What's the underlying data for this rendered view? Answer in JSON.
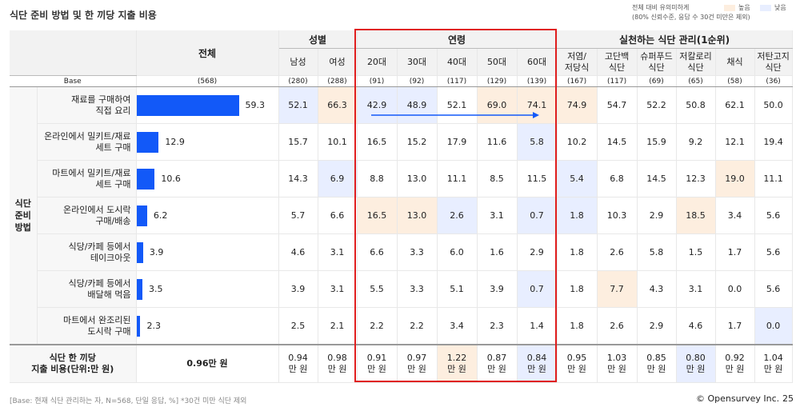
{
  "title": "식단 준비 방법 및 한 끼당 지출 비용",
  "legend": {
    "note_line1": "전체 대비 유의미하게",
    "note_line2": "(80% 신뢰수준, 응답 수 30건 미만은 제외)",
    "high_label": "높음",
    "low_label": "낮음",
    "high_color": "#fdeedf",
    "low_color": "#e8eeff"
  },
  "header": {
    "total": "전체",
    "gender": "성별",
    "age": "연령",
    "diet": "실천하는 식단 관리(1순위)",
    "cols": [
      "남성",
      "여성",
      "20대",
      "30대",
      "40대",
      "50대",
      "60대",
      "저염/\n저당식",
      "고단백\n식단",
      "슈퍼푸드\n식단",
      "저칼로리\n식단",
      "채식",
      "저탄고지\n식단"
    ]
  },
  "base": {
    "label": "Base",
    "total": "(568)",
    "values": [
      "(280)",
      "(288)",
      "(91)",
      "(92)",
      "(117)",
      "(129)",
      "(139)",
      "(167)",
      "(117)",
      "(69)",
      "(65)",
      "(58)",
      "(36)"
    ]
  },
  "group_label": "식단\n준비\n방법",
  "rows": [
    {
      "label": "재료를 구매하여\n직접 요리",
      "total": "59.3",
      "total_num": 59.3,
      "values": [
        "52.1",
        "66.3",
        "42.9",
        "48.9",
        "52.1",
        "69.0",
        "74.1",
        "74.9",
        "54.7",
        "52.2",
        "50.8",
        "62.1",
        "50.0"
      ],
      "marks": [
        "lo",
        "hi",
        "lo",
        "lo",
        "",
        "hi",
        "hi",
        "hi",
        "",
        "",
        "",
        "",
        ""
      ]
    },
    {
      "label": "온라인에서 밀키트/재료\n세트 구매",
      "total": "12.9",
      "total_num": 12.9,
      "values": [
        "15.7",
        "10.1",
        "16.5",
        "15.2",
        "17.9",
        "11.6",
        "5.8",
        "10.2",
        "14.5",
        "15.9",
        "9.2",
        "12.1",
        "19.4"
      ],
      "marks": [
        "",
        "",
        "",
        "",
        "",
        "",
        "lo",
        "",
        "",
        "",
        "",
        "",
        ""
      ]
    },
    {
      "label": "마트에서 밀키트/재료\n세트 구매",
      "total": "10.6",
      "total_num": 10.6,
      "values": [
        "14.3",
        "6.9",
        "8.8",
        "13.0",
        "11.1",
        "8.5",
        "11.5",
        "5.4",
        "6.8",
        "14.5",
        "12.3",
        "19.0",
        "11.1"
      ],
      "marks": [
        "",
        "lo",
        "",
        "",
        "",
        "",
        "",
        "lo",
        "",
        "",
        "",
        "hi",
        ""
      ]
    },
    {
      "label": "온라인에서 도시락\n구매/배송",
      "total": "6.2",
      "total_num": 6.2,
      "values": [
        "5.7",
        "6.6",
        "16.5",
        "13.0",
        "2.6",
        "3.1",
        "0.7",
        "1.8",
        "10.3",
        "2.9",
        "18.5",
        "3.4",
        "5.6"
      ],
      "marks": [
        "",
        "",
        "hi",
        "hi",
        "lo",
        "",
        "lo",
        "lo",
        "",
        "",
        "hi",
        "",
        ""
      ]
    },
    {
      "label": "식당/카페 등에서\n테이크아웃",
      "total": "3.9",
      "total_num": 3.9,
      "values": [
        "4.6",
        "3.1",
        "6.6",
        "3.3",
        "6.0",
        "1.6",
        "2.9",
        "1.8",
        "2.6",
        "5.8",
        "1.5",
        "1.7",
        "5.6"
      ],
      "marks": [
        "",
        "",
        "",
        "",
        "",
        "",
        "",
        "",
        "",
        "",
        "",
        "",
        ""
      ]
    },
    {
      "label": "식당/카페 등에서\n배달해 먹음",
      "total": "3.5",
      "total_num": 3.5,
      "values": [
        "3.9",
        "3.1",
        "5.5",
        "3.3",
        "5.1",
        "3.9",
        "0.7",
        "1.8",
        "7.7",
        "4.3",
        "3.1",
        "0.0",
        "5.6"
      ],
      "marks": [
        "",
        "",
        "",
        "",
        "",
        "",
        "lo",
        "",
        "hi",
        "",
        "",
        "",
        ""
      ]
    },
    {
      "label": "마트에서 완조리된\n도시락 구매",
      "total": "2.3",
      "total_num": 2.3,
      "values": [
        "2.5",
        "2.1",
        "2.2",
        "2.2",
        "3.4",
        "2.3",
        "1.4",
        "1.8",
        "2.6",
        "2.9",
        "4.6",
        "1.7",
        "0.0"
      ],
      "marks": [
        "",
        "",
        "",
        "",
        "",
        "",
        "",
        "",
        "",
        "",
        "",
        "",
        "lo"
      ]
    }
  ],
  "spend": {
    "label": "식단 한 끼당\n지출 비용(단위:만 원)",
    "total": "0.96만 원",
    "values": [
      "0.94\n만 원",
      "0.98\n만 원",
      "0.91\n만 원",
      "0.97\n만 원",
      "1.22\n만 원",
      "0.87\n만 원",
      "0.84\n만 원",
      "0.95\n만 원",
      "1.03\n만 원",
      "0.85\n만 원",
      "0.80\n만 원",
      "0.92\n만 원",
      "1.04\n만 원"
    ],
    "marks": [
      "",
      "",
      "",
      "",
      "hi",
      "",
      "lo",
      "",
      "",
      "",
      "lo",
      "",
      ""
    ]
  },
  "footer": "[Base: 현재 식단 관리하는 자, N=568, 단일 응답, %] *30건 미만 식단 제외",
  "brand": "© Opensurvey Inc.",
  "page": "25",
  "bar_color": "#1259f8",
  "highlight_color": "#e01e1e"
}
